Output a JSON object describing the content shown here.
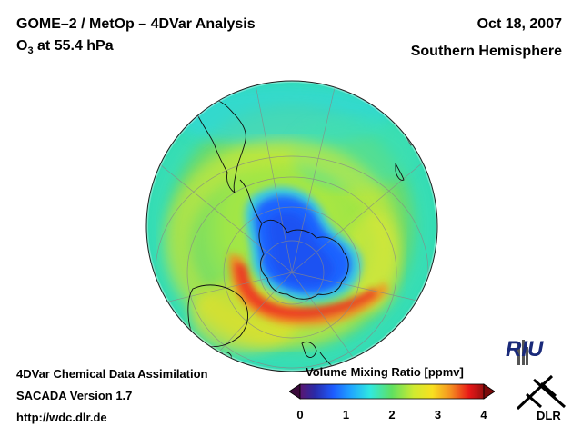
{
  "header": {
    "title": "GOME–2 / MetOp – 4DVar Analysis",
    "subtitle_main": "O",
    "subtitle_sub": "3",
    "subtitle_rest": " at 55.4 hPa",
    "date": "Oct 18, 2007",
    "region": "Southern Hemisphere"
  },
  "footer": {
    "line1": "4DVar Chemical Data Assimilation",
    "line2": "SACADA Version 1.7",
    "line3": "http://wdc.dlr.de"
  },
  "colorbar": {
    "title": "Volume Mixing Ratio [ppmv]",
    "ticks": [
      "0",
      "1",
      "2",
      "3",
      "4"
    ],
    "min": 0,
    "max": 4
  },
  "logos": {
    "riu": "RIU",
    "dlr": "DLR"
  },
  "colors": {
    "ozone_hole": "#1e64ff",
    "ozone_high": "#e8101a",
    "background_field": "#7fe060"
  }
}
